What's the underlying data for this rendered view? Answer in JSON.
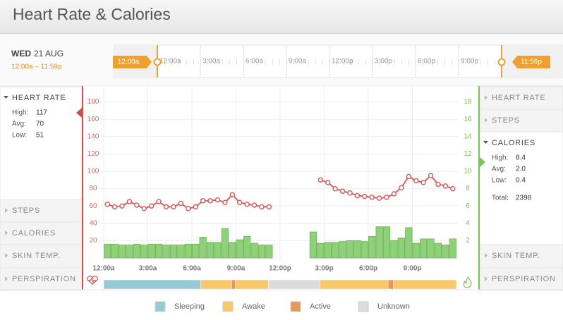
{
  "header": {
    "title": "Heart Rate & Calories"
  },
  "date": {
    "weekday": "WED",
    "day": "21 AUG",
    "range": "12:00a – 11:59p"
  },
  "timeline": {
    "start_label": "12:00a",
    "end_label": "11:59p"
  },
  "left_panel": {
    "sections": [
      {
        "title": "HEART RATE",
        "stats": [
          {
            "label": "High:",
            "value": "117"
          },
          {
            "label": "Avg:",
            "value": "70"
          },
          {
            "label": "Low:",
            "value": "51"
          }
        ]
      },
      {
        "title": "STEPS"
      },
      {
        "title": "CALORIES"
      },
      {
        "title": "SKIN TEMP."
      },
      {
        "title": "PERSPIRATION"
      }
    ]
  },
  "right_panel": {
    "sections": [
      {
        "title": "HEART RATE"
      },
      {
        "title": "STEPS"
      },
      {
        "title": "CALORIES",
        "stats": [
          {
            "label": "High:",
            "value": "8.4"
          },
          {
            "label": "Avg:",
            "value": "2.0"
          },
          {
            "label": "Low:",
            "value": "0.4"
          },
          {
            "label": "Total:",
            "value": "2398"
          }
        ]
      },
      {
        "title": "SKIN TEMP."
      },
      {
        "title": "PERSPIRATION"
      }
    ]
  },
  "chart_data": {
    "type": "bar_line",
    "x": [
      0,
      0.5,
      1,
      1.5,
      2,
      2.5,
      3,
      3.5,
      4,
      4.5,
      5,
      5.5,
      6,
      6.5,
      7,
      7.5,
      8,
      8.5,
      9,
      9.5,
      10,
      10.5,
      11,
      11.5,
      12,
      12.5,
      13,
      13.5,
      14,
      14.5,
      15,
      15.5,
      16,
      16.5,
      17,
      17.5,
      18,
      18.5,
      19,
      19.5,
      20,
      20.5,
      21,
      21.5,
      22,
      22.5,
      23,
      23.5
    ],
    "xlim": [
      0,
      24
    ],
    "xticks": [
      {
        "value": 0,
        "label": "12:00a"
      },
      {
        "value": 3,
        "label": "3:00a"
      },
      {
        "value": 6,
        "label": "6:00a"
      },
      {
        "value": 9,
        "label": "9:00a"
      },
      {
        "value": 12,
        "label": "12:00p"
      },
      {
        "value": 15,
        "label": "3:00p"
      },
      {
        "value": 18,
        "label": "6:00p"
      },
      {
        "value": 21,
        "label": "9:00p"
      }
    ],
    "ylim": [
      0,
      200
    ],
    "yticks": [
      20,
      40,
      60,
      80,
      100,
      120,
      140,
      160,
      180
    ],
    "y2lim": [
      0,
      20
    ],
    "y2ticks": [
      2,
      4,
      6,
      8,
      10,
      12,
      14,
      16,
      18
    ],
    "grid": true,
    "series": [
      {
        "type": "line",
        "color": "#cf6262",
        "values": [
          62,
          59,
          60,
          65,
          61,
          57,
          60,
          65,
          59,
          59,
          63,
          57,
          59,
          66,
          66,
          67,
          64,
          73,
          64,
          62,
          61,
          59,
          59,
          null,
          null,
          null,
          null,
          null,
          null,
          90,
          87,
          80,
          77,
          75,
          72,
          71,
          70,
          69,
          70,
          74,
          81,
          94,
          89,
          87,
          95,
          85,
          83,
          80
        ]
      },
      {
        "type": "bar",
        "axis": "y2",
        "color": "#8fd07a",
        "values": [
          1.6,
          1.6,
          1.5,
          1.5,
          1.6,
          1.5,
          1.6,
          1.6,
          1.5,
          1.5,
          1.5,
          1.6,
          1.6,
          2.4,
          1.8,
          1.8,
          3.4,
          1.8,
          2.1,
          2.5,
          1.7,
          1.5,
          1.5,
          null,
          null,
          null,
          null,
          null,
          3.0,
          1.7,
          1.8,
          1.8,
          1.9,
          2.0,
          2.0,
          1.9,
          2.5,
          3.6,
          3.6,
          2.0,
          2.3,
          3.5,
          1.7,
          2.2,
          2.2,
          1.7,
          1.5,
          2.2
        ]
      }
    ],
    "activity": [
      {
        "state": "Sleeping",
        "start": 0,
        "end": 6.6
      },
      {
        "state": "Awake",
        "start": 6.6,
        "end": 8.7
      },
      {
        "state": "Active",
        "start": 8.7,
        "end": 8.95
      },
      {
        "state": "Awake",
        "start": 8.95,
        "end": 11.2
      },
      {
        "state": "Unknown",
        "start": 11.2,
        "end": 14.7
      },
      {
        "state": "Awake",
        "start": 14.7,
        "end": 19.35
      },
      {
        "state": "Active",
        "start": 19.35,
        "end": 19.7
      },
      {
        "state": "Awake",
        "start": 19.7,
        "end": 24
      }
    ],
    "legend": [
      {
        "name": "Sleeping",
        "color": "#94cbd6"
      },
      {
        "name": "Awake",
        "color": "#f7c96b"
      },
      {
        "name": "Active",
        "color": "#e8975a"
      },
      {
        "name": "Unknown",
        "color": "#dcdcdc"
      }
    ]
  }
}
